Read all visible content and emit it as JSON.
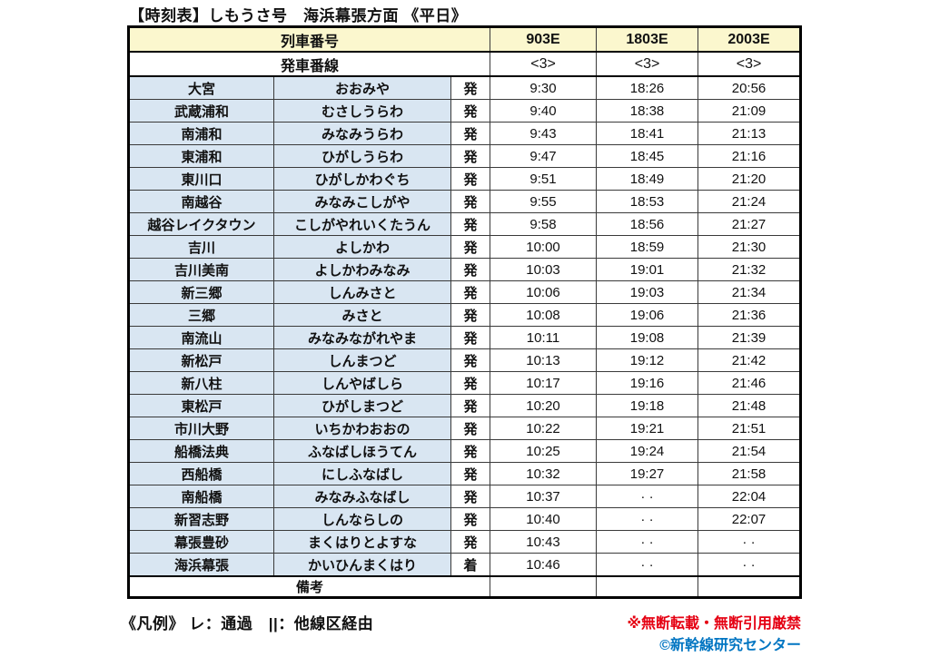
{
  "title": "【時刻表】しもうさ号　海浜幕張方面 《平日》",
  "table": {
    "train_number_label": "列車番号",
    "train_numbers": [
      "903E",
      "1803E",
      "2003E"
    ],
    "platform_label": "発車番線",
    "platforms": [
      "<3>",
      "<3>",
      "<3>"
    ],
    "remarks_label": "備考",
    "remarks": [
      "",
      "",
      ""
    ],
    "pass_mark": "· ·",
    "rows": [
      {
        "station": "大宮",
        "kana": "おおみや",
        "type": "発",
        "times": [
          "9:30",
          "18:26",
          "20:56"
        ]
      },
      {
        "station": "武蔵浦和",
        "kana": "むさしうらわ",
        "type": "発",
        "times": [
          "9:40",
          "18:38",
          "21:09"
        ]
      },
      {
        "station": "南浦和",
        "kana": "みなみうらわ",
        "type": "発",
        "times": [
          "9:43",
          "18:41",
          "21:13"
        ]
      },
      {
        "station": "東浦和",
        "kana": "ひがしうらわ",
        "type": "発",
        "times": [
          "9:47",
          "18:45",
          "21:16"
        ]
      },
      {
        "station": "東川口",
        "kana": "ひがしかわぐち",
        "type": "発",
        "times": [
          "9:51",
          "18:49",
          "21:20"
        ]
      },
      {
        "station": "南越谷",
        "kana": "みなみこしがや",
        "type": "発",
        "times": [
          "9:55",
          "18:53",
          "21:24"
        ]
      },
      {
        "station": "越谷レイクタウン",
        "kana": "こしがやれいくたうん",
        "type": "発",
        "times": [
          "9:58",
          "18:56",
          "21:27"
        ]
      },
      {
        "station": "吉川",
        "kana": "よしかわ",
        "type": "発",
        "times": [
          "10:00",
          "18:59",
          "21:30"
        ]
      },
      {
        "station": "吉川美南",
        "kana": "よしかわみなみ",
        "type": "発",
        "times": [
          "10:03",
          "19:01",
          "21:32"
        ]
      },
      {
        "station": "新三郷",
        "kana": "しんみさと",
        "type": "発",
        "times": [
          "10:06",
          "19:03",
          "21:34"
        ]
      },
      {
        "station": "三郷",
        "kana": "みさと",
        "type": "発",
        "times": [
          "10:08",
          "19:06",
          "21:36"
        ]
      },
      {
        "station": "南流山",
        "kana": "みなみながれやま",
        "type": "発",
        "times": [
          "10:11",
          "19:08",
          "21:39"
        ]
      },
      {
        "station": "新松戸",
        "kana": "しんまつど",
        "type": "発",
        "times": [
          "10:13",
          "19:12",
          "21:42"
        ]
      },
      {
        "station": "新八柱",
        "kana": "しんやばしら",
        "type": "発",
        "times": [
          "10:17",
          "19:16",
          "21:46"
        ]
      },
      {
        "station": "東松戸",
        "kana": "ひがしまつど",
        "type": "発",
        "times": [
          "10:20",
          "19:18",
          "21:48"
        ]
      },
      {
        "station": "市川大野",
        "kana": "いちかわおおの",
        "type": "発",
        "times": [
          "10:22",
          "19:21",
          "21:51"
        ]
      },
      {
        "station": "船橋法典",
        "kana": "ふなばしほうてん",
        "type": "発",
        "times": [
          "10:25",
          "19:24",
          "21:54"
        ]
      },
      {
        "station": "西船橋",
        "kana": "にしふなばし",
        "type": "発",
        "times": [
          "10:32",
          "19:27",
          "21:58"
        ]
      },
      {
        "station": "南船橋",
        "kana": "みなみふなばし",
        "type": "発",
        "times": [
          "10:37",
          "· ·",
          "22:04"
        ]
      },
      {
        "station": "新習志野",
        "kana": "しんならしの",
        "type": "発",
        "times": [
          "10:40",
          "· ·",
          "22:07"
        ]
      },
      {
        "station": "幕張豊砂",
        "kana": "まくはりとよすな",
        "type": "発",
        "times": [
          "10:43",
          "· ·",
          "· ·"
        ]
      },
      {
        "station": "海浜幕張",
        "kana": "かいひんまくはり",
        "type": "着",
        "times": [
          "10:46",
          "· ·",
          "· ·"
        ]
      }
    ]
  },
  "footer": {
    "legend": "《凡例》 レ：通過　||：他線区経由",
    "warning": "※無断転載・無断引用厳禁",
    "copyright": "©新幹線研究センター"
  },
  "colors": {
    "header_bg": "#FBF7CE",
    "station_bg": "#D9E6F2",
    "warning_color": "#E50012",
    "copyright_color": "#0075C2"
  }
}
